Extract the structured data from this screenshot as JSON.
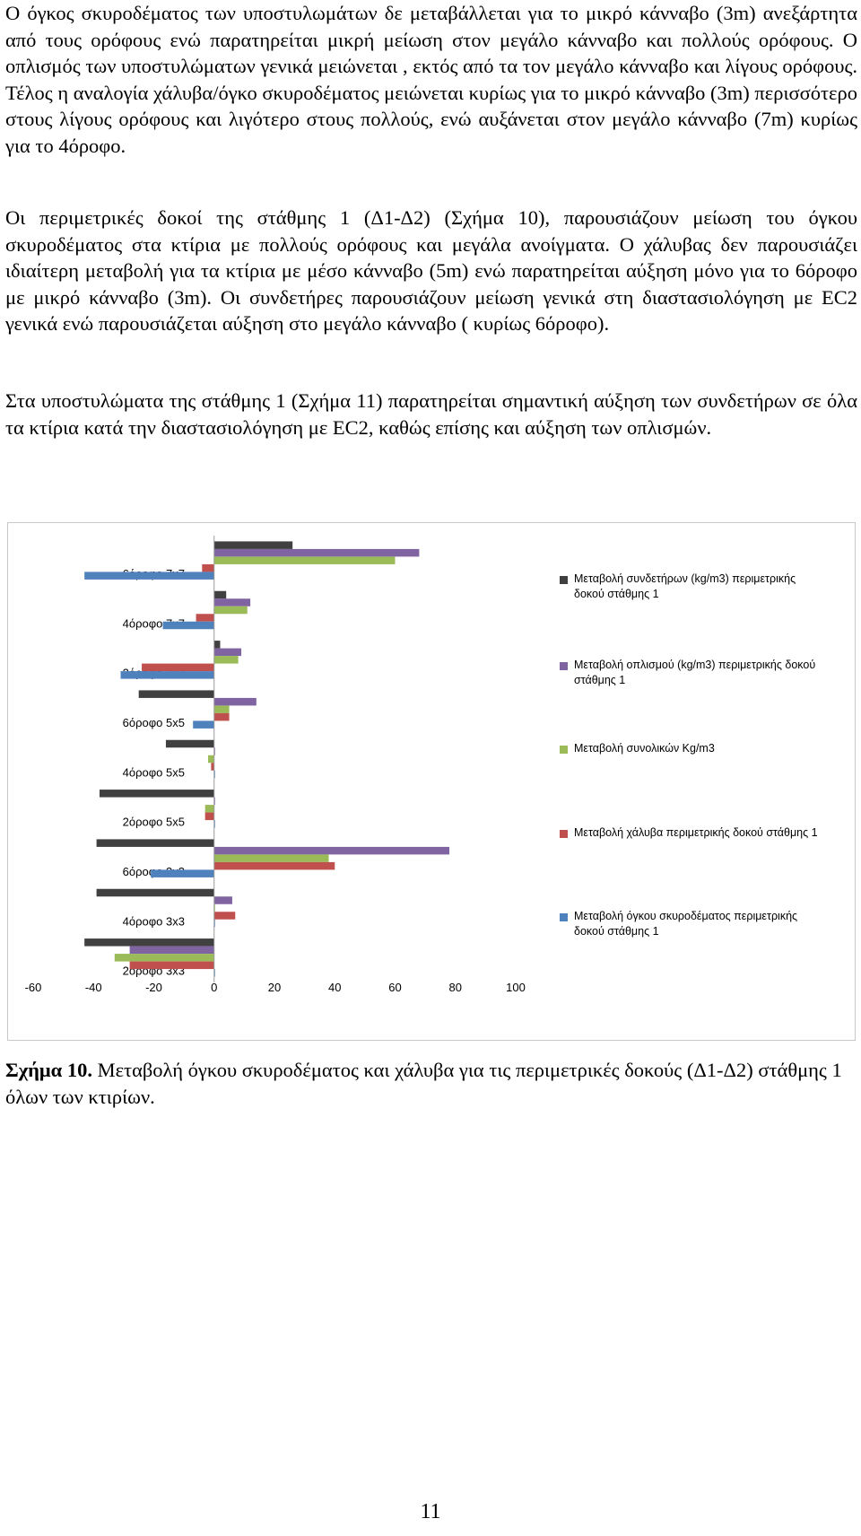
{
  "paragraphs": [
    "Ο όγκος σκυροδέματος των υποστυλωμάτων δε μεταβάλλεται για το μικρό κάνναβο (3m) ανεξάρτητα από τους ορόφους ενώ παρατηρείται μικρή μείωση στον μεγάλο κάνναβο και πολλούς ορόφους. Ο οπλισμός των υποστυλώματων γενικά μειώνεται , εκτός από τα τον μεγάλο κάνναβο και λίγους ορόφους. Τέλος η αναλογία χάλυβα/όγκο σκυροδέματος μειώνεται κυρίως για το μικρό κάνναβο (3m) περισσότερο στους λίγους ορόφους και λιγότερο στους πολλούς, ενώ αυξάνεται στον μεγάλο κάνναβο (7m) κυρίως για το 4όροφο.",
    "Οι περιμετρικές δοκοί της στάθμης 1 (Δ1-Δ2) (Σχήμα 10), παρουσιάζουν μείωση του όγκου σκυροδέματος στα κτίρια με πολλούς ορόφους και μεγάλα ανοίγματα. Ο χάλυβας δεν παρουσιάζει ιδιαίτερη μεταβολή για τα κτίρια με μέσο κάνναβο (5m) ενώ παρατηρείται αύξηση μόνο για το 6όροφο με μικρό κάνναβο (3m). Οι συνδετήρες παρουσιάζουν μείωση γενικά στη διαστασιολόγηση με EC2 γενικά ενώ παρουσιάζεται αύξηση στο μεγάλο κάνναβο ( κυρίως 6όροφο).",
    "Στα υποστυλώματα της στάθμης 1 (Σχήμα 11) παρατηρείται σημαντική αύξηση των συνδετήρων σε όλα τα κτίρια κατά την διαστασιολόγηση με EC2, καθώς επίσης και αύξηση των οπλισμών."
  ],
  "caption": {
    "label": "Σχήμα 10.",
    "text": " Μεταβολή όγκου σκυροδέματος και χάλυβα για τις περιμετρικές δοκούς (Δ1-Δ2) στάθμης 1 όλων των κτιρίων."
  },
  "page_number": "11",
  "chart_data": {
    "type": "bar",
    "orientation": "horizontal",
    "categories": [
      "2όροφο 3x3",
      "4όροφο 3x3",
      "6όροφο 3x3",
      "2όροφο 5x5",
      "4όροφο 5x5",
      "6όροφο 5x5",
      "2όροφο 7x7",
      "4όροφο 7x7",
      "6όροφο 7x7"
    ],
    "category_order": "bottom-to-top",
    "xlim": [
      -60,
      100
    ],
    "xticks": [
      -60,
      -40,
      -20,
      0,
      20,
      40,
      60,
      80,
      100
    ],
    "grid": false,
    "legend_position": "right",
    "series": [
      {
        "name": "Μεταβολή συνδετήρων (kg/m3) περιμετρικής δοκού στάθμης 1",
        "color": "#404040",
        "values": [
          -43,
          -39,
          -39,
          -38,
          -16,
          -25,
          2,
          4,
          26
        ]
      },
      {
        "name": "Μεταβολή οπλισμού (kg/m3) περιμετρικής δοκού στάθμης 1",
        "color": "#8064a2",
        "values": [
          -28,
          6,
          78,
          0,
          0,
          14,
          9,
          12,
          68
        ]
      },
      {
        "name": "Μεταβολή συνολικών Kg/m3",
        "color": "#9bbb59",
        "values": [
          -33,
          0,
          38,
          -3,
          -2,
          5,
          8,
          11,
          60
        ]
      },
      {
        "name": "Μεταβολή χάλυβα περιμετρικής δοκού στάθμης 1",
        "color": "#c0504d",
        "values": [
          -28,
          7,
          40,
          -3,
          -1,
          5,
          -24,
          -6,
          -4
        ]
      },
      {
        "name": "Μεταβολή όγκου σκυροδέματος περιμετρικής δοκού στάθμης 1",
        "color": "#4f81bd",
        "values": [
          0,
          0,
          -21,
          0,
          0,
          -7,
          -31,
          -17,
          -43
        ]
      }
    ]
  }
}
